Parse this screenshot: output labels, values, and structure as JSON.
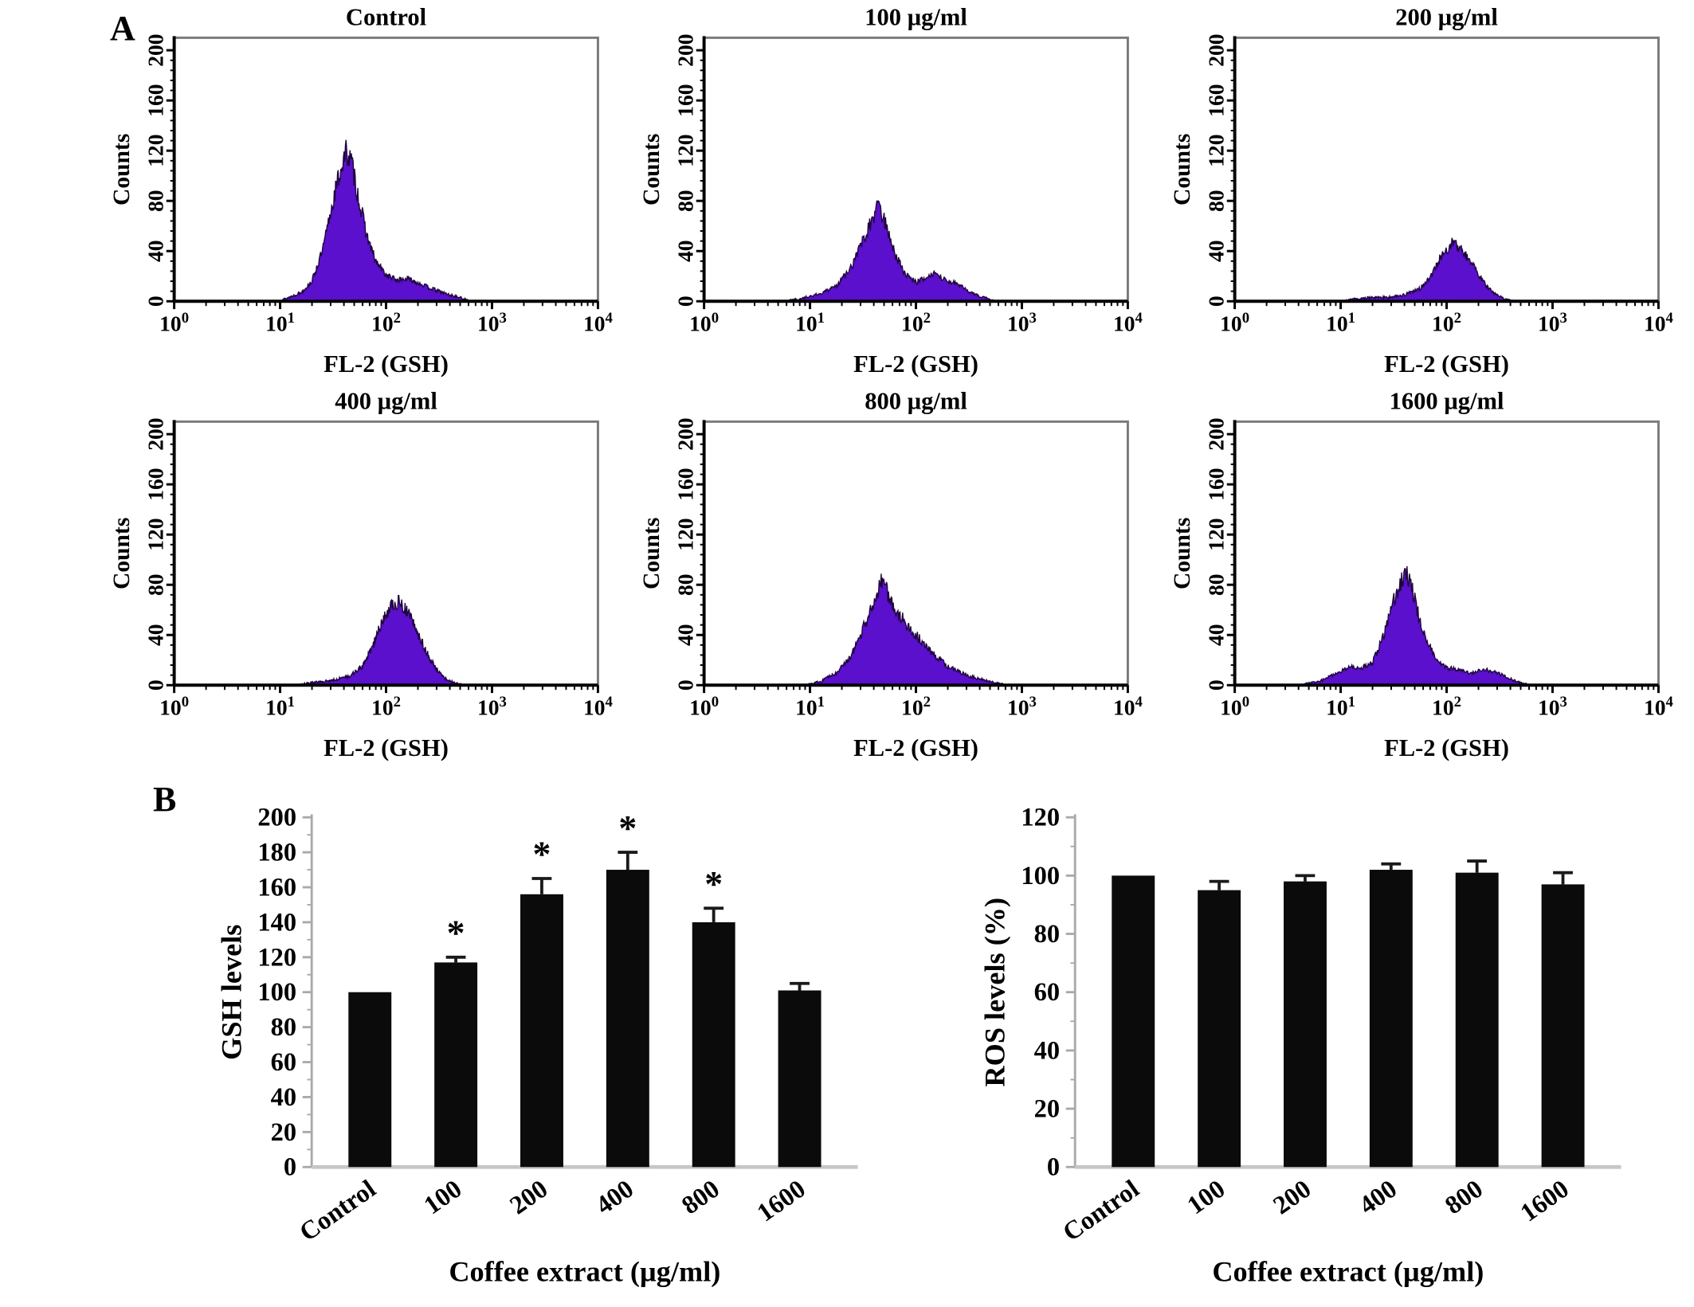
{
  "panels": {
    "a_label": "A",
    "b_label": "B"
  },
  "chart_data": [
    {
      "type": "histogram-set",
      "panel": "A",
      "shared": {
        "xlabel": "FL-2 (GSH)",
        "ylabel": "Counts",
        "x_scale": "log10",
        "x_exponents": [
          0,
          1,
          2,
          3,
          4
        ],
        "yticks": [
          0,
          40,
          80,
          120,
          160,
          200
        ],
        "ymax": 210,
        "fill_color": "#5a10cc",
        "outline_color": "#20053d",
        "frame_color": "#7a7a7a"
      },
      "items": [
        {
          "title": "Control",
          "slug": "control",
          "peak_x": 42,
          "peak_counts": 120,
          "points": [
            [
              0.95,
              0
            ],
            [
              1.05,
              2
            ],
            [
              1.2,
              7
            ],
            [
              1.3,
              16
            ],
            [
              1.4,
              40
            ],
            [
              1.5,
              80
            ],
            [
              1.58,
              108
            ],
            [
              1.63,
              120
            ],
            [
              1.68,
              108
            ],
            [
              1.75,
              78
            ],
            [
              1.82,
              52
            ],
            [
              1.9,
              32
            ],
            [
              2.0,
              21
            ],
            [
              2.1,
              17
            ],
            [
              2.2,
              18
            ],
            [
              2.3,
              15
            ],
            [
              2.4,
              11
            ],
            [
              2.5,
              8
            ],
            [
              2.6,
              5
            ],
            [
              2.7,
              3
            ],
            [
              2.8,
              0
            ]
          ]
        },
        {
          "title": "100 µg/ml",
          "slug": "100",
          "peak_x": 45,
          "peak_counts": 76,
          "points": [
            [
              0.75,
              0
            ],
            [
              0.9,
              2
            ],
            [
              1.1,
              6
            ],
            [
              1.25,
              12
            ],
            [
              1.4,
              28
            ],
            [
              1.5,
              48
            ],
            [
              1.6,
              68
            ],
            [
              1.65,
              76
            ],
            [
              1.72,
              60
            ],
            [
              1.8,
              38
            ],
            [
              1.9,
              22
            ],
            [
              2.0,
              15
            ],
            [
              2.1,
              19
            ],
            [
              2.18,
              22
            ],
            [
              2.28,
              17
            ],
            [
              2.4,
              13
            ],
            [
              2.5,
              8
            ],
            [
              2.6,
              4
            ],
            [
              2.72,
              1
            ],
            [
              2.8,
              0
            ]
          ]
        },
        {
          "title": "200 µg/ml",
          "slug": "200",
          "peak_x": 112,
          "peak_counts": 46,
          "points": [
            [
              1.0,
              0
            ],
            [
              1.15,
              2
            ],
            [
              1.3,
              3
            ],
            [
              1.45,
              3
            ],
            [
              1.6,
              5
            ],
            [
              1.75,
              10
            ],
            [
              1.85,
              20
            ],
            [
              1.95,
              36
            ],
            [
              2.05,
              46
            ],
            [
              2.12,
              43
            ],
            [
              2.2,
              34
            ],
            [
              2.3,
              22
            ],
            [
              2.38,
              12
            ],
            [
              2.45,
              6
            ],
            [
              2.55,
              2
            ],
            [
              2.65,
              0
            ]
          ]
        },
        {
          "title": "400 µg/ml",
          "slug": "400",
          "peak_x": 132,
          "peak_counts": 68,
          "points": [
            [
              1.15,
              0
            ],
            [
              1.3,
              2
            ],
            [
              1.5,
              4
            ],
            [
              1.65,
              7
            ],
            [
              1.78,
              15
            ],
            [
              1.88,
              32
            ],
            [
              1.97,
              52
            ],
            [
              2.05,
              63
            ],
            [
              2.12,
              68
            ],
            [
              2.2,
              60
            ],
            [
              2.28,
              45
            ],
            [
              2.35,
              32
            ],
            [
              2.42,
              20
            ],
            [
              2.5,
              10
            ],
            [
              2.58,
              4
            ],
            [
              2.68,
              1
            ],
            [
              2.75,
              0
            ]
          ]
        },
        {
          "title": "800 µg/ml",
          "slug": "800",
          "peak_x": 48,
          "peak_counts": 85,
          "points": [
            [
              0.95,
              0
            ],
            [
              1.1,
              3
            ],
            [
              1.25,
              10
            ],
            [
              1.38,
              22
            ],
            [
              1.5,
              45
            ],
            [
              1.6,
              65
            ],
            [
              1.68,
              85
            ],
            [
              1.75,
              70
            ],
            [
              1.82,
              58
            ],
            [
              1.9,
              50
            ],
            [
              2.0,
              40
            ],
            [
              2.1,
              30
            ],
            [
              2.2,
              22
            ],
            [
              2.3,
              15
            ],
            [
              2.42,
              10
            ],
            [
              2.55,
              6
            ],
            [
              2.7,
              3
            ],
            [
              2.85,
              0
            ]
          ]
        },
        {
          "title": "1600 µg/ml",
          "slug": "1600",
          "peak_x": 43,
          "peak_counts": 88,
          "points": [
            [
              0.6,
              0
            ],
            [
              0.8,
              3
            ],
            [
              0.95,
              9
            ],
            [
              1.1,
              15
            ],
            [
              1.2,
              14
            ],
            [
              1.3,
              18
            ],
            [
              1.4,
              38
            ],
            [
              1.5,
              68
            ],
            [
              1.58,
              84
            ],
            [
              1.63,
              88
            ],
            [
              1.7,
              68
            ],
            [
              1.78,
              42
            ],
            [
              1.88,
              24
            ],
            [
              1.98,
              15
            ],
            [
              2.1,
              12
            ],
            [
              2.2,
              10
            ],
            [
              2.3,
              11
            ],
            [
              2.4,
              12
            ],
            [
              2.5,
              9
            ],
            [
              2.6,
              5
            ],
            [
              2.7,
              2
            ],
            [
              2.8,
              0
            ]
          ]
        }
      ]
    },
    {
      "type": "bar",
      "id": "gsh",
      "mount": "chart-gsh",
      "ylabel": "GSH levels",
      "xlabel": "Coffee extract (µg/ml)",
      "categories": [
        "Control",
        "100",
        "200",
        "400",
        "800",
        "1600"
      ],
      "values": [
        100,
        117,
        156,
        170,
        140,
        101
      ],
      "errors": [
        0,
        3,
        9,
        10,
        8,
        4
      ],
      "significant": [
        false,
        true,
        true,
        true,
        true,
        false
      ],
      "sig_symbol": "*",
      "ylim": [
        0,
        200
      ],
      "ytick_step": 20,
      "bar_color": "#0b0b0b",
      "axis_color": "#a9a9a9"
    },
    {
      "type": "bar",
      "id": "ros",
      "mount": "chart-ros",
      "ylabel": "ROS levels (%)",
      "xlabel": "Coffee extract (µg/ml)",
      "categories": [
        "Control",
        "100",
        "200",
        "400",
        "800",
        "1600"
      ],
      "values": [
        100,
        95,
        98,
        102,
        101,
        97
      ],
      "errors": [
        0,
        3,
        2,
        2,
        4,
        4
      ],
      "significant": [
        false,
        false,
        false,
        false,
        false,
        false
      ],
      "sig_symbol": "*",
      "ylim": [
        0,
        120
      ],
      "ytick_step": 20,
      "bar_color": "#0b0b0b",
      "axis_color": "#a9a9a9"
    }
  ]
}
